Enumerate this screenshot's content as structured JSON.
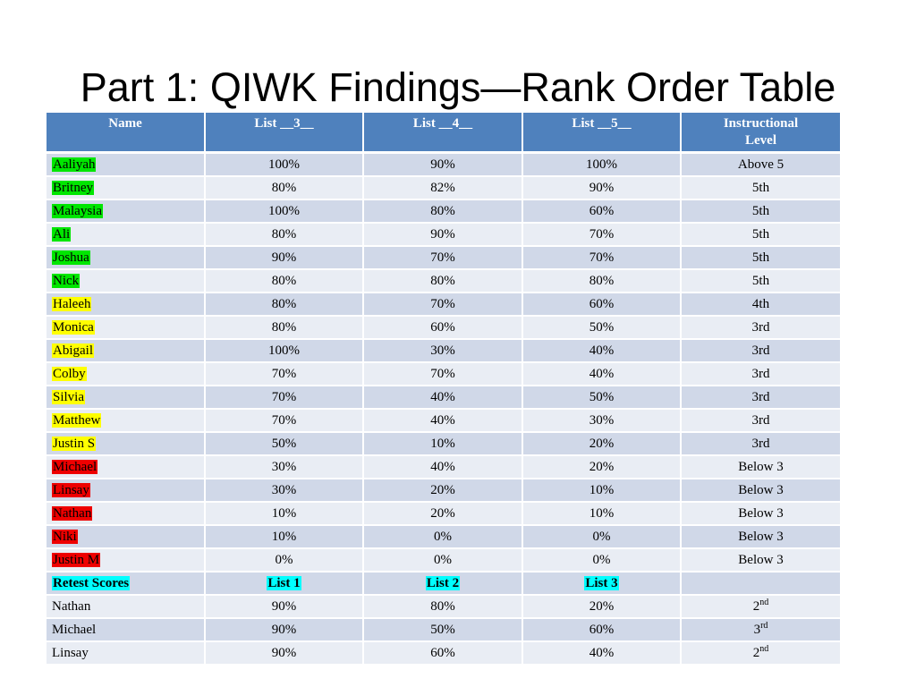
{
  "title": "Part 1: QIWK Findings—Rank Order Table",
  "colors": {
    "header_bg": "#4f81bd",
    "row_odd": "#d0d8e8",
    "row_even": "#e9edf4",
    "green": "#00e600",
    "yellow": "#ffff00",
    "red": "#ee0000",
    "cyan": "#00ffff"
  },
  "headers": {
    "name": "Name",
    "list_a": "List __3__",
    "list_b": "List __4__",
    "list_c": "List __5__",
    "level_line1": "Instructional",
    "level_line2": "Level"
  },
  "students": [
    {
      "name": "Aaliyah",
      "hl": "green",
      "l1": "100%",
      "l2": "90%",
      "l3": "100%",
      "level": "Above 5"
    },
    {
      "name": "Britney",
      "hl": "green",
      "l1": "80%",
      "l2": "82%",
      "l3": "90%",
      "level": "5th"
    },
    {
      "name": "Malaysia",
      "hl": "green",
      "l1": "100%",
      "l2": "80%",
      "l3": "60%",
      "level": "5th"
    },
    {
      "name": "Ali",
      "hl": "green",
      "l1": "80%",
      "l2": "90%",
      "l3": "70%",
      "level": "5th"
    },
    {
      "name": "Joshua",
      "hl": "green",
      "l1": "90%",
      "l2": "70%",
      "l3": "70%",
      "level": "5th"
    },
    {
      "name": "Nick",
      "hl": "green",
      "l1": "80%",
      "l2": "80%",
      "l3": "80%",
      "level": "5th"
    },
    {
      "name": "Haleeh",
      "hl": "yellow",
      "l1": "80%",
      "l2": "70%",
      "l3": "60%",
      "level": "4th"
    },
    {
      "name": "Monica",
      "hl": "yellow",
      "l1": "80%",
      "l2": "60%",
      "l3": "50%",
      "level": "3rd"
    },
    {
      "name": "Abigail",
      "hl": "yellow",
      "l1": "100%",
      "l2": "30%",
      "l3": "40%",
      "level": "3rd"
    },
    {
      "name": "Colby",
      "hl": "yellow",
      "l1": "70%",
      "l2": "70%",
      "l3": "40%",
      "level": "3rd"
    },
    {
      "name": "Silvia",
      "hl": "yellow",
      "l1": "70%",
      "l2": "40%",
      "l3": "50%",
      "level": "3rd"
    },
    {
      "name": "Matthew",
      "hl": "yellow",
      "l1": "70%",
      "l2": "40%",
      "l3": "30%",
      "level": "3rd"
    },
    {
      "name": "Justin S",
      "hl": "yellow",
      "l1": "50%",
      "l2": "10%",
      "l3": "20%",
      "level": "3rd"
    },
    {
      "name": "Michael",
      "hl": "red",
      "l1": "30%",
      "l2": "40%",
      "l3": "20%",
      "level": "Below 3"
    },
    {
      "name": "Linsay",
      "hl": "red",
      "l1": "30%",
      "l2": "20%",
      "l3": "10%",
      "level": "Below 3"
    },
    {
      "name": "Nathan",
      "hl": "red",
      "l1": "10%",
      "l2": "20%",
      "l3": "10%",
      "level": "Below 3"
    },
    {
      "name": "Niki",
      "hl": "red",
      "l1": "10%",
      "l2": "0%",
      "l3": "0%",
      "level": "Below 3"
    },
    {
      "name": "Justin M",
      "hl": "red",
      "l1": "0%",
      "l2": "0%",
      "l3": "0%",
      "level": "Below 3"
    }
  ],
  "retest_header": {
    "label": "Retest Scores",
    "list1": "List 1",
    "list2": "List 2",
    "list3": "List 3"
  },
  "retest": [
    {
      "name": "Nathan",
      "l1": "90%",
      "l2": "80%",
      "l3": "20%",
      "level_num": "2",
      "level_sup": "nd"
    },
    {
      "name": "Michael",
      "l1": "90%",
      "l2": "50%",
      "l3": "60%",
      "level_num": "3",
      "level_sup": "rd"
    },
    {
      "name": "Linsay",
      "l1": "90%",
      "l2": "60%",
      "l3": "40%",
      "level_num": "2",
      "level_sup": "nd"
    }
  ]
}
